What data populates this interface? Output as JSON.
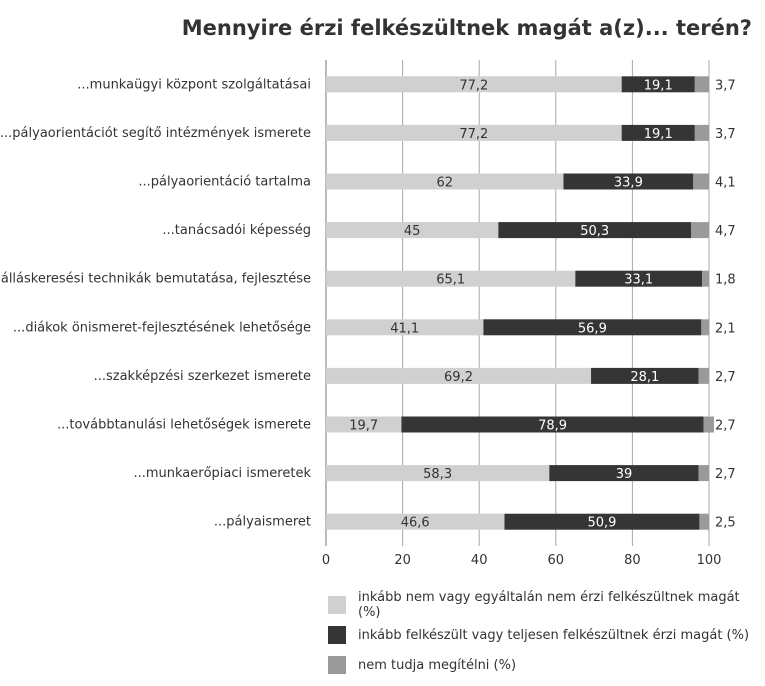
{
  "chart_data": {
    "type": "bar",
    "orientation": "horizontal",
    "stacked": true,
    "title": "Mennyire érzi felkészültnek magát a(z)... terén?",
    "categories": [
      "...munkaügyi központ szolgáltatásai",
      "...pályaorientációt segítő intézmények ismerete",
      "...pályaorientáció tartalma",
      "...tanácsadói képesség",
      "...álláskeresési technikák bemutatása, fejlesztése",
      "...diákok önismeret-fejlesztésének lehetősége",
      "...szakképzési szerkezet ismerete",
      "...továbbtanulási lehetőségek ismerete",
      "...munkaerőpiaci ismeretek",
      "...pályaismeret"
    ],
    "series": [
      {
        "name": "inkább nem vagy egyáltalán nem érzi felkészültnek magát (%)",
        "color": "#d0d0d0",
        "values": [
          77.2,
          77.2,
          62,
          45,
          65.1,
          41.1,
          69.2,
          19.7,
          58.3,
          46.6
        ],
        "labels": [
          "77,2",
          "77,2",
          "62",
          "45",
          "65,1",
          "41,1",
          "69,2",
          "19,7",
          "58,3",
          "46,6"
        ]
      },
      {
        "name": "inkább felkészült vagy teljesen felkészültnek érzi magát (%)",
        "color": "#353535",
        "values": [
          19.1,
          19.1,
          33.9,
          50.3,
          33.1,
          56.9,
          28.1,
          78.9,
          39,
          50.9
        ],
        "labels": [
          "19,1",
          "19,1",
          "33,9",
          "50,3",
          "33,1",
          "56,9",
          "28,1",
          "78,9",
          "39",
          "50,9"
        ]
      },
      {
        "name": "nem tudja megítélni (%)",
        "color": "#9a9a9a",
        "values": [
          3.7,
          3.7,
          4.1,
          4.7,
          1.8,
          2.1,
          2.7,
          2.7,
          2.7,
          2.5
        ],
        "labels": [
          "3,7",
          "3,7",
          "4,1",
          "4,7",
          "1,8",
          "2,1",
          "2,7",
          "2,7",
          "2,7",
          "2,5"
        ]
      }
    ],
    "xlim": [
      0,
      100
    ],
    "xticks": [
      "0",
      "20",
      "40",
      "60",
      "80",
      "100"
    ],
    "grid": true,
    "legend_position": "bottom"
  }
}
